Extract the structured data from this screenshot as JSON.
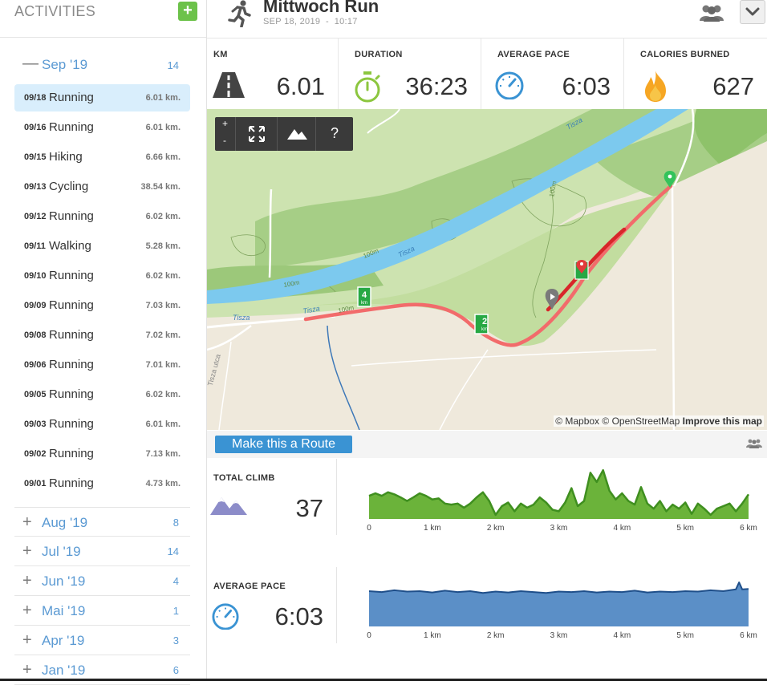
{
  "sidebar": {
    "title": "ACTIVITIES",
    "add_label": "+",
    "open_month": {
      "label": "Sep '19",
      "count": "14",
      "sign": "—"
    },
    "activities": [
      {
        "date": "09/18",
        "type": "Running",
        "distance": "6.01 km."
      },
      {
        "date": "09/16",
        "type": "Running",
        "distance": "6.01 km."
      },
      {
        "date": "09/15",
        "type": "Hiking",
        "distance": "6.66 km."
      },
      {
        "date": "09/13",
        "type": "Cycling",
        "distance": "38.54 km."
      },
      {
        "date": "09/12",
        "type": "Running",
        "distance": "6.02 km."
      },
      {
        "date": "09/11",
        "type": "Walking",
        "distance": "5.28 km."
      },
      {
        "date": "09/10",
        "type": "Running",
        "distance": "6.02 km."
      },
      {
        "date": "09/09",
        "type": "Running",
        "distance": "7.03 km."
      },
      {
        "date": "09/08",
        "type": "Running",
        "distance": "7.02 km."
      },
      {
        "date": "09/06",
        "type": "Running",
        "distance": "7.01 km."
      },
      {
        "date": "09/05",
        "type": "Running",
        "distance": "6.02 km."
      },
      {
        "date": "09/03",
        "type": "Running",
        "distance": "6.01 km."
      },
      {
        "date": "09/02",
        "type": "Running",
        "distance": "7.13 km."
      },
      {
        "date": "09/01",
        "type": "Running",
        "distance": "4.73 km."
      }
    ],
    "collapsed_months": [
      {
        "label": "Aug '19",
        "count": "8",
        "sign": "+"
      },
      {
        "label": "Jul '19",
        "count": "14",
        "sign": "+"
      },
      {
        "label": "Jun '19",
        "count": "4",
        "sign": "+"
      },
      {
        "label": "Mai '19",
        "count": "1",
        "sign": "+"
      },
      {
        "label": "Apr '19",
        "count": "3",
        "sign": "+"
      },
      {
        "label": "Jan '19",
        "count": "6",
        "sign": "+"
      }
    ]
  },
  "header": {
    "title": "Mittwoch Run",
    "date": "SEP 18, 2019",
    "separator": "-",
    "time": "10:17"
  },
  "stats": [
    {
      "label": "KM",
      "value": "6.01",
      "icon": "road-icon"
    },
    {
      "label": "DURATION",
      "value": "36:23",
      "icon": "stopwatch-icon"
    },
    {
      "label": "AVERAGE PACE",
      "value": "6:03",
      "icon": "speedometer-icon"
    },
    {
      "label": "CALORIES BURNED",
      "value": "627",
      "icon": "flame-icon"
    }
  ],
  "map": {
    "controls": {
      "zoom_in": "+",
      "zoom_out": "-",
      "help": "?"
    },
    "attribution": {
      "mapbox": "© Mapbox",
      "osm": "© OpenStreetMap",
      "improve": "Improve this map"
    },
    "labels": {
      "river_1": "Tisza",
      "river_2": "Tisza",
      "river_3": "Tisza",
      "river_4": "Tisza",
      "contour_1": "100m",
      "contour_2": "100m",
      "contour_3": "100m",
      "contour_4": "100m",
      "street": "Tisza utca"
    },
    "markers": {
      "km4": "4",
      "km2": "2",
      "km_unit": "km"
    }
  },
  "route_button": "Make this a Route",
  "climb": {
    "label": "TOTAL CLIMB",
    "value": "37"
  },
  "pace": {
    "label": "AVERAGE PACE",
    "value": "6:03"
  },
  "chart_data": [
    {
      "type": "area",
      "name": "elevation",
      "x_ticks": [
        "0",
        "1 km",
        "2 km",
        "3 km",
        "4 km",
        "5 km",
        "6 km"
      ],
      "xlim": [
        0,
        6
      ],
      "color": "#6bb33a",
      "x": [
        0,
        0.1,
        0.2,
        0.3,
        0.4,
        0.5,
        0.6,
        0.7,
        0.8,
        0.9,
        1.0,
        1.1,
        1.2,
        1.3,
        1.4,
        1.5,
        1.6,
        1.7,
        1.8,
        1.9,
        2.0,
        2.1,
        2.2,
        2.3,
        2.4,
        2.5,
        2.6,
        2.7,
        2.8,
        2.9,
        3.0,
        3.1,
        3.2,
        3.3,
        3.4,
        3.5,
        3.6,
        3.7,
        3.8,
        3.9,
        4.0,
        4.1,
        4.2,
        4.3,
        4.4,
        4.5,
        4.6,
        4.7,
        4.8,
        4.9,
        5.0,
        5.1,
        5.2,
        5.3,
        5.4,
        5.5,
        5.6,
        5.7,
        5.8,
        5.9,
        6.0
      ],
      "values": [
        0.45,
        0.5,
        0.45,
        0.52,
        0.48,
        0.42,
        0.35,
        0.42,
        0.5,
        0.45,
        0.38,
        0.4,
        0.3,
        0.28,
        0.3,
        0.22,
        0.3,
        0.42,
        0.52,
        0.35,
        0.08,
        0.25,
        0.32,
        0.15,
        0.3,
        0.22,
        0.28,
        0.42,
        0.32,
        0.18,
        0.15,
        0.32,
        0.6,
        0.25,
        0.35,
        0.9,
        0.72,
        0.95,
        0.55,
        0.38,
        0.5,
        0.35,
        0.28,
        0.62,
        0.3,
        0.2,
        0.35,
        0.15,
        0.28,
        0.2,
        0.32,
        0.1,
        0.3,
        0.2,
        0.08,
        0.2,
        0.25,
        0.3,
        0.15,
        0.3,
        0.48
      ]
    },
    {
      "type": "area",
      "name": "pace",
      "x_ticks": [
        "0",
        "1 km",
        "2 km",
        "3 km",
        "4 km",
        "5 km",
        "6 km"
      ],
      "xlim": [
        0,
        6
      ],
      "color": "#5b8fc7",
      "x": [
        0,
        0.2,
        0.4,
        0.6,
        0.8,
        1.0,
        1.2,
        1.4,
        1.6,
        1.8,
        2.0,
        2.2,
        2.4,
        2.6,
        2.8,
        3.0,
        3.2,
        3.4,
        3.6,
        3.8,
        4.0,
        4.2,
        4.4,
        4.6,
        4.8,
        5.0,
        5.2,
        5.4,
        5.6,
        5.8,
        5.85,
        5.9,
        6.0
      ],
      "values": [
        0.8,
        0.78,
        0.82,
        0.79,
        0.8,
        0.77,
        0.81,
        0.78,
        0.8,
        0.76,
        0.79,
        0.77,
        0.8,
        0.78,
        0.76,
        0.79,
        0.78,
        0.8,
        0.77,
        0.79,
        0.78,
        0.81,
        0.77,
        0.79,
        0.78,
        0.8,
        0.79,
        0.82,
        0.8,
        0.84,
        1.0,
        0.84,
        0.85
      ]
    }
  ]
}
